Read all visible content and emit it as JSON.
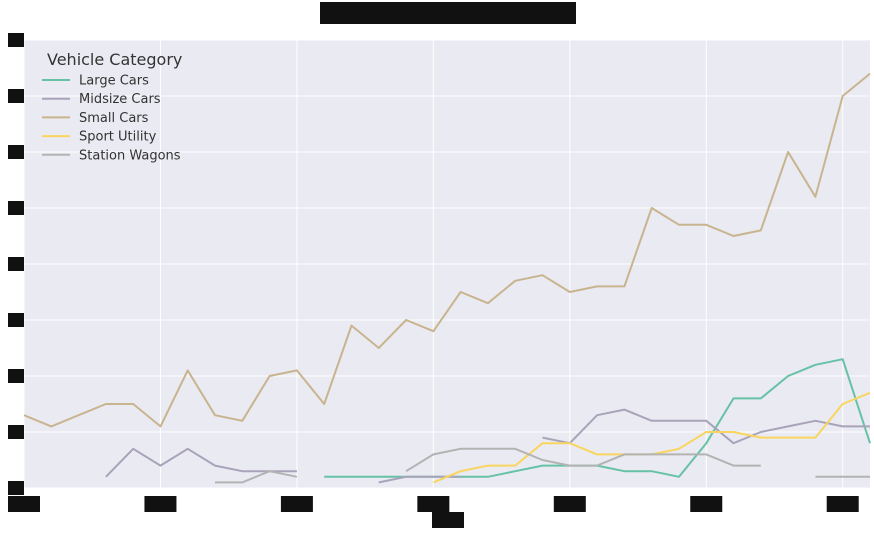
{
  "chart_data": {
    "type": "line",
    "title": "",
    "xlabel": "",
    "ylabel": "",
    "grid": true,
    "legend": {
      "title": "Vehicle Category",
      "placement": "top-left"
    },
    "xlim": [
      1,
      32
    ],
    "ylim": [
      0,
      8
    ],
    "x_ticks": [
      1,
      6,
      11,
      16,
      21,
      26,
      31
    ],
    "y_ticks": [
      0,
      1,
      2,
      3,
      4,
      5,
      6,
      7,
      8
    ],
    "series": [
      {
        "name": "Large Cars",
        "color": "#66c2a5",
        "points": [
          [
            12,
            0.2
          ],
          [
            13,
            0.2
          ],
          [
            14,
            0.2
          ],
          [
            15,
            0.2
          ],
          [
            16,
            0.2
          ],
          [
            17,
            0.2
          ],
          [
            18,
            0.2
          ],
          [
            19,
            0.3
          ],
          [
            20,
            0.4
          ],
          [
            21,
            0.4
          ],
          [
            22,
            0.4
          ],
          [
            23,
            0.3
          ],
          [
            24,
            0.3
          ],
          [
            25,
            0.2
          ],
          [
            26,
            0.8
          ],
          [
            27,
            1.6
          ],
          [
            28,
            1.6
          ],
          [
            29,
            2.0
          ],
          [
            30,
            2.2
          ],
          [
            31,
            2.3
          ],
          [
            32,
            0.8
          ]
        ]
      },
      {
        "name": "Midsize Cars",
        "color": "#a9a3b9",
        "points": [
          [
            4,
            0.2
          ],
          [
            5,
            0.7
          ],
          [
            6,
            0.4
          ],
          [
            7,
            0.7
          ],
          [
            8,
            0.4
          ],
          [
            9,
            0.3
          ],
          [
            10,
            0.3
          ],
          [
            11,
            0.3
          ],
          null,
          [
            14,
            0.1
          ],
          [
            15,
            0.2
          ],
          [
            16,
            0.2
          ],
          [
            17,
            0.2
          ],
          null,
          [
            20,
            0.9
          ],
          [
            21,
            0.8
          ],
          [
            22,
            1.3
          ],
          [
            23,
            1.4
          ],
          [
            24,
            1.2
          ],
          [
            25,
            1.2
          ],
          [
            26,
            1.2
          ],
          [
            27,
            0.8
          ],
          [
            28,
            1.0
          ],
          [
            29,
            1.1
          ],
          [
            30,
            1.2
          ],
          [
            31,
            1.1
          ],
          [
            32,
            1.1
          ]
        ]
      },
      {
        "name": "Small Cars",
        "color": "#c8b48e",
        "points": [
          [
            1,
            1.3
          ],
          [
            2,
            1.1
          ],
          [
            3,
            1.3
          ],
          [
            4,
            1.5
          ],
          [
            5,
            1.5
          ],
          [
            6,
            1.1
          ],
          [
            7,
            2.1
          ],
          [
            8,
            1.3
          ],
          [
            9,
            1.2
          ],
          [
            10,
            2.0
          ],
          [
            11,
            2.1
          ],
          [
            12,
            1.5
          ],
          [
            13,
            2.9
          ],
          [
            14,
            2.5
          ],
          [
            15,
            3.0
          ],
          [
            16,
            2.8
          ],
          [
            17,
            3.5
          ],
          [
            18,
            3.3
          ],
          [
            19,
            3.7
          ],
          [
            20,
            3.8
          ],
          [
            21,
            3.5
          ],
          [
            22,
            3.6
          ],
          [
            23,
            3.6
          ],
          [
            24,
            5.0
          ],
          [
            25,
            4.7
          ],
          [
            26,
            4.7
          ],
          [
            27,
            4.5
          ],
          [
            28,
            4.6
          ],
          [
            29,
            6.0
          ],
          [
            30,
            5.2
          ],
          [
            31,
            7.0
          ],
          [
            32,
            7.4
          ]
        ]
      },
      {
        "name": "Sport Utility",
        "color": "#f9d55f",
        "points": [
          [
            16,
            0.1
          ],
          [
            17,
            0.3
          ],
          [
            18,
            0.4
          ],
          [
            19,
            0.4
          ],
          [
            20,
            0.8
          ],
          [
            21,
            0.8
          ],
          [
            22,
            0.6
          ],
          [
            23,
            0.6
          ],
          [
            24,
            0.6
          ],
          [
            25,
            0.7
          ],
          [
            26,
            1.0
          ],
          [
            27,
            1.0
          ],
          [
            28,
            0.9
          ],
          [
            29,
            0.9
          ],
          [
            30,
            0.9
          ],
          [
            31,
            1.5
          ],
          [
            32,
            1.7
          ]
        ]
      },
      {
        "name": "Station Wagons",
        "color": "#b3b3b3",
        "points": [
          [
            8,
            0.1
          ],
          [
            9,
            0.1
          ],
          [
            10,
            0.3
          ],
          [
            11,
            0.2
          ],
          null,
          [
            15,
            0.3
          ],
          [
            16,
            0.6
          ],
          [
            17,
            0.7
          ],
          [
            18,
            0.7
          ],
          [
            19,
            0.7
          ],
          [
            20,
            0.5
          ],
          [
            21,
            0.4
          ],
          [
            22,
            0.4
          ],
          [
            23,
            0.6
          ],
          [
            24,
            0.6
          ],
          [
            25,
            0.6
          ],
          [
            26,
            0.6
          ],
          [
            27,
            0.4
          ],
          [
            28,
            0.4
          ],
          null,
          [
            30,
            0.2
          ],
          [
            31,
            0.2
          ],
          [
            32,
            0.2
          ]
        ]
      }
    ]
  }
}
